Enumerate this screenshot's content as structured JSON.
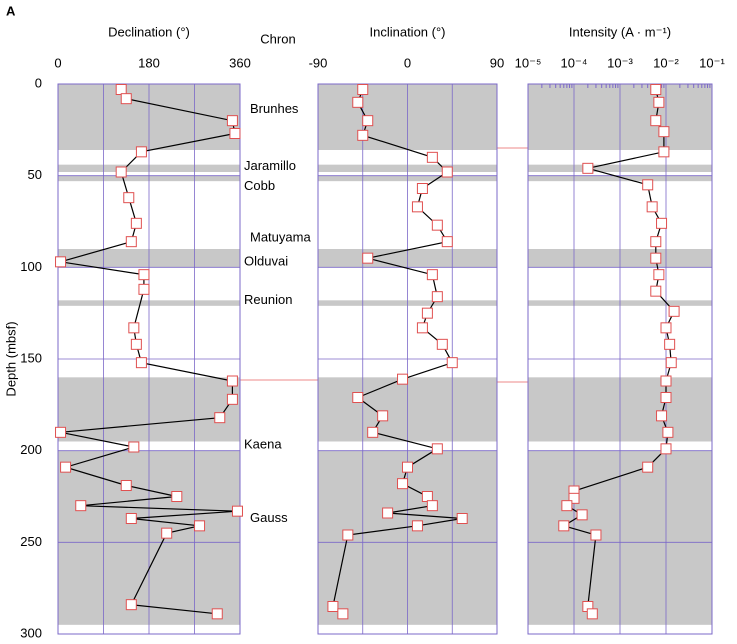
{
  "panel_label": "A",
  "chron_title": "Chron",
  "chrons": [
    {
      "name": "Brunhes",
      "depth": 14
    },
    {
      "name": "Jaramillo",
      "depth": 45
    },
    {
      "name": "Cobb",
      "depth": 56
    },
    {
      "name": "Matuyama",
      "depth": 84
    },
    {
      "name": "Olduvai",
      "depth": 97
    },
    {
      "name": "Reunion",
      "depth": 118
    },
    {
      "name": "Kaena",
      "depth": 197
    },
    {
      "name": "Gauss",
      "depth": 237
    }
  ],
  "polarity_bands": [
    [
      0,
      36
    ],
    [
      44,
      48
    ],
    [
      50,
      53
    ],
    [
      90,
      100
    ],
    [
      118,
      121
    ],
    [
      160,
      195
    ],
    [
      200,
      295
    ]
  ],
  "chart_data": [
    {
      "type": "scatter",
      "title": "Declination  (°)",
      "ylabel": "Depth (mbsf)",
      "ylim": [
        0,
        300
      ],
      "yticks": [
        0,
        50,
        100,
        150,
        200,
        250,
        300
      ],
      "xlim": [
        0,
        360
      ],
      "xticks": [
        0,
        180,
        360
      ],
      "y": [
        3,
        8,
        20,
        27,
        37,
        48,
        62,
        76,
        86,
        97,
        104,
        112,
        133,
        142,
        152,
        162,
        172,
        182,
        190,
        198,
        209,
        219,
        225,
        230,
        233,
        237,
        241,
        245,
        284,
        289
      ],
      "x": [
        125,
        135,
        345,
        350,
        165,
        125,
        140,
        155,
        145,
        5,
        170,
        170,
        150,
        155,
        165,
        345,
        345,
        320,
        5,
        150,
        15,
        135,
        235,
        45,
        355,
        145,
        280,
        215,
        145,
        315
      ]
    },
    {
      "type": "scatter",
      "title": "Inclination  (°)",
      "ylim": [
        0,
        300
      ],
      "xlim": [
        -90,
        90
      ],
      "xticks": [
        -90,
        0,
        90
      ],
      "y": [
        3,
        10,
        20,
        28,
        40,
        48,
        57,
        67,
        77,
        86,
        95,
        104,
        116,
        125,
        133,
        142,
        152,
        161,
        171,
        181,
        190,
        199,
        209,
        218,
        225,
        230,
        234,
        237,
        241,
        246,
        285,
        289
      ],
      "x": [
        -45,
        -50,
        -40,
        -45,
        25,
        40,
        15,
        10,
        30,
        40,
        -40,
        25,
        30,
        20,
        15,
        35,
        45,
        -5,
        -50,
        -25,
        -35,
        30,
        0,
        -5,
        20,
        25,
        -20,
        55,
        10,
        -60,
        -75,
        -65
      ]
    },
    {
      "type": "scatter",
      "title": "Intensity (A · m⁻¹)",
      "log": true,
      "ylim": [
        0,
        300
      ],
      "xlim": [
        1e-05,
        0.1
      ],
      "xticks": [
        {
          "value": 1e-05,
          "label": "10⁻⁵"
        },
        {
          "value": 0.0001,
          "label": "10⁻⁴"
        },
        {
          "value": 0.001,
          "label": "10⁻³"
        },
        {
          "value": 0.01,
          "label": "10⁻²"
        },
        {
          "value": 0.1,
          "label": "10⁻¹"
        }
      ],
      "y": [
        3,
        10,
        20,
        26,
        37,
        46,
        55,
        67,
        76,
        86,
        95,
        104,
        113,
        124,
        133,
        142,
        152,
        162,
        171,
        181,
        190,
        199,
        209,
        222,
        226,
        230,
        235,
        241,
        246,
        285,
        289
      ],
      "x": [
        0.006,
        0.007,
        0.006,
        0.009,
        0.009,
        0.0002,
        0.004,
        0.005,
        0.008,
        0.006,
        0.006,
        0.007,
        0.006,
        0.015,
        0.01,
        0.012,
        0.013,
        0.01,
        0.01,
        0.008,
        0.011,
        0.01,
        0.004,
        0.0001,
        0.0001,
        7e-05,
        0.00015,
        6e-05,
        0.0003,
        0.0002,
        0.00025
      ]
    }
  ]
}
